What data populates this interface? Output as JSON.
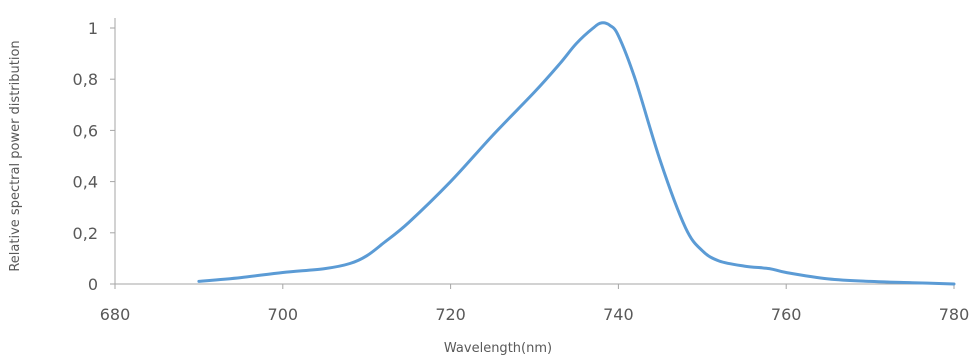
{
  "chart_data": {
    "type": "line",
    "title": "",
    "xlabel": "Wavelength(nm)",
    "ylabel": "Relative spectral power distribution",
    "xlim": [
      680,
      780
    ],
    "ylim": [
      0,
      1
    ],
    "x_ticks": [
      "680",
      "700",
      "720",
      "740",
      "760",
      "780"
    ],
    "y_ticks": [
      "0",
      "0,2",
      "0,4",
      "0,6",
      "0,8",
      "1"
    ],
    "grid": false,
    "legend": "none",
    "series": [
      {
        "color": "#5b9bd5",
        "x": [
          690,
          695,
          700,
          705,
          708,
          710,
          712,
          715,
          720,
          725,
          730,
          733,
          735,
          737,
          738,
          739,
          740,
          742,
          745,
          748,
          750,
          752,
          755,
          758,
          760,
          765,
          770,
          775,
          780
        ],
        "y": [
          0.01,
          0.025,
          0.045,
          0.06,
          0.08,
          0.11,
          0.16,
          0.24,
          0.4,
          0.58,
          0.75,
          0.86,
          0.94,
          1.0,
          1.02,
          1.01,
          0.97,
          0.8,
          0.48,
          0.22,
          0.13,
          0.09,
          0.07,
          0.06,
          0.045,
          0.02,
          0.01,
          0.005,
          0.0
        ]
      }
    ]
  }
}
